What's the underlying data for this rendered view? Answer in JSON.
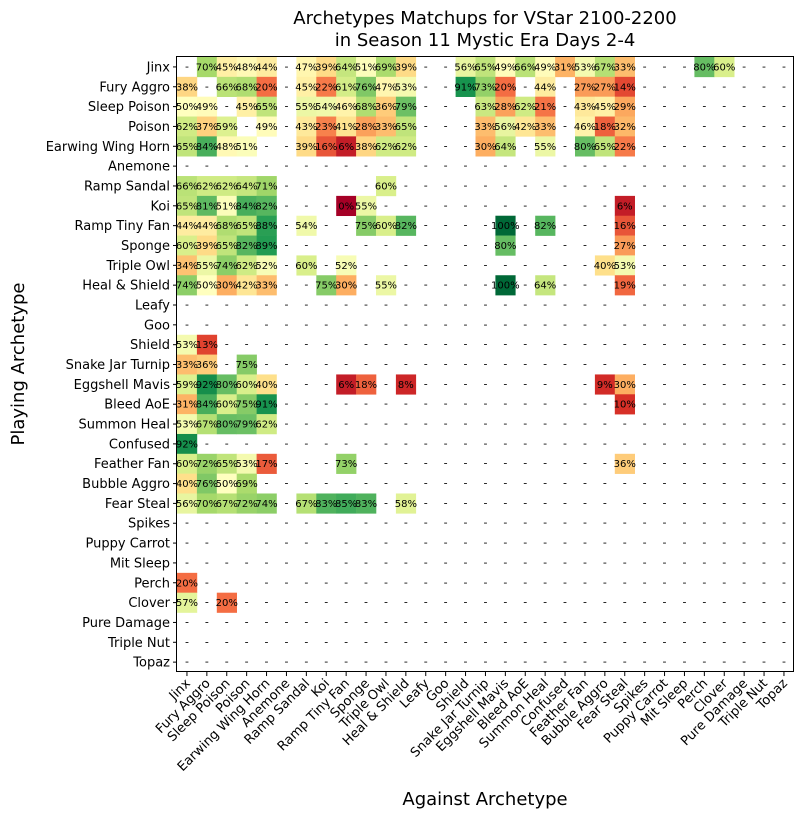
{
  "chart_data": {
    "type": "heatmap",
    "title_line1": "Archetypes Matchups for VStar 2100-2200",
    "title_line2": "in Season 11 Mystic Era Days 2-4",
    "xlabel": "Against Archetype",
    "ylabel": "Playing Archetype",
    "colormap": "RdYlGn",
    "value_range": [
      0,
      100
    ],
    "missing_label": "-",
    "categories": [
      "Jinx",
      "Fury Aggro",
      "Sleep Poison",
      "Poison",
      "Earwing Wing Horn",
      "Anemone",
      "Ramp Sandal",
      "Koi",
      "Ramp Tiny Fan",
      "Sponge",
      "Triple Owl",
      "Heal & Shield",
      "Leafy",
      "Goo",
      "Shield",
      "Snake Jar Turnip",
      "Eggshell Mavis",
      "Bleed AoE",
      "Summon Heal",
      "Confused",
      "Feather Fan",
      "Bubble Aggro",
      "Fear Steal",
      "Spikes",
      "Puppy Carrot",
      "Mit Sleep",
      "Perch",
      "Clover",
      "Pure Damage",
      "Triple Nut",
      "Topaz"
    ],
    "matrix": [
      [
        null,
        70,
        45,
        48,
        44,
        null,
        47,
        39,
        64,
        51,
        69,
        39,
        null,
        null,
        56,
        65,
        49,
        66,
        49,
        31,
        53,
        67,
        33,
        null,
        null,
        null,
        80,
        60,
        null,
        null,
        null
      ],
      [
        38,
        null,
        66,
        68,
        20,
        null,
        45,
        22,
        61,
        76,
        47,
        53,
        null,
        null,
        91,
        73,
        20,
        null,
        44,
        null,
        27,
        27,
        14,
        null,
        null,
        null,
        null,
        null,
        null,
        null,
        null
      ],
      [
        50,
        49,
        null,
        45,
        65,
        null,
        55,
        54,
        46,
        68,
        36,
        79,
        null,
        null,
        null,
        63,
        28,
        62,
        21,
        null,
        43,
        45,
        29,
        null,
        null,
        null,
        null,
        null,
        null,
        null,
        null
      ],
      [
        62,
        37,
        59,
        null,
        49,
        null,
        43,
        23,
        41,
        28,
        33,
        65,
        null,
        null,
        null,
        33,
        56,
        42,
        33,
        null,
        46,
        18,
        32,
        null,
        null,
        null,
        null,
        null,
        null,
        null,
        null
      ],
      [
        65,
        84,
        48,
        51,
        null,
        null,
        39,
        16,
        6,
        38,
        62,
        62,
        null,
        null,
        null,
        30,
        64,
        null,
        55,
        null,
        80,
        65,
        22,
        null,
        null,
        null,
        null,
        null,
        null,
        null,
        null
      ],
      [
        null,
        null,
        null,
        null,
        null,
        null,
        null,
        null,
        null,
        null,
        null,
        null,
        null,
        null,
        null,
        null,
        null,
        null,
        null,
        null,
        null,
        null,
        null,
        null,
        null,
        null,
        null,
        null,
        null,
        null,
        null
      ],
      [
        66,
        62,
        62,
        64,
        71,
        null,
        null,
        null,
        null,
        null,
        60,
        null,
        null,
        null,
        null,
        null,
        null,
        null,
        null,
        null,
        null,
        null,
        null,
        null,
        null,
        null,
        null,
        null,
        null,
        null,
        null
      ],
      [
        65,
        81,
        51,
        84,
        82,
        null,
        null,
        null,
        0,
        55,
        null,
        null,
        null,
        null,
        null,
        null,
        null,
        null,
        null,
        null,
        null,
        null,
        6,
        null,
        null,
        null,
        null,
        null,
        null,
        null,
        null
      ],
      [
        44,
        44,
        68,
        65,
        88,
        null,
        54,
        null,
        null,
        75,
        60,
        82,
        null,
        null,
        null,
        null,
        100,
        null,
        82,
        null,
        null,
        null,
        16,
        null,
        null,
        null,
        null,
        null,
        null,
        null,
        null
      ],
      [
        60,
        39,
        65,
        82,
        89,
        null,
        null,
        null,
        null,
        null,
        null,
        null,
        null,
        null,
        null,
        null,
        80,
        null,
        null,
        null,
        null,
        null,
        27,
        null,
        null,
        null,
        null,
        null,
        null,
        null,
        null
      ],
      [
        34,
        55,
        74,
        62,
        52,
        null,
        60,
        null,
        52,
        null,
        null,
        null,
        null,
        null,
        null,
        null,
        null,
        null,
        null,
        null,
        null,
        40,
        53,
        null,
        null,
        null,
        null,
        null,
        null,
        null,
        null
      ],
      [
        74,
        50,
        30,
        42,
        33,
        null,
        null,
        75,
        30,
        null,
        55,
        null,
        null,
        null,
        null,
        null,
        100,
        null,
        64,
        null,
        null,
        null,
        19,
        null,
        null,
        null,
        null,
        null,
        null,
        null,
        null
      ],
      [
        null,
        null,
        null,
        null,
        null,
        null,
        null,
        null,
        null,
        null,
        null,
        null,
        null,
        null,
        null,
        null,
        null,
        null,
        null,
        null,
        null,
        null,
        null,
        null,
        null,
        null,
        null,
        null,
        null,
        null,
        null
      ],
      [
        null,
        null,
        null,
        null,
        null,
        null,
        null,
        null,
        null,
        null,
        null,
        null,
        null,
        null,
        null,
        null,
        null,
        null,
        null,
        null,
        null,
        null,
        null,
        null,
        null,
        null,
        null,
        null,
        null,
        null,
        null
      ],
      [
        53,
        13,
        null,
        null,
        null,
        null,
        null,
        null,
        null,
        null,
        null,
        null,
        null,
        null,
        null,
        null,
        null,
        null,
        null,
        null,
        null,
        null,
        null,
        null,
        null,
        null,
        null,
        null,
        null,
        null,
        null
      ],
      [
        33,
        36,
        null,
        75,
        null,
        null,
        null,
        null,
        null,
        null,
        null,
        null,
        null,
        null,
        null,
        null,
        null,
        null,
        null,
        null,
        null,
        null,
        null,
        null,
        null,
        null,
        null,
        null,
        null,
        null,
        null
      ],
      [
        59,
        92,
        80,
        60,
        40,
        null,
        null,
        null,
        6,
        18,
        null,
        8,
        null,
        null,
        null,
        null,
        null,
        null,
        null,
        null,
        null,
        9,
        30,
        null,
        null,
        null,
        null,
        null,
        null,
        null,
        null
      ],
      [
        31,
        84,
        60,
        75,
        91,
        null,
        null,
        null,
        null,
        null,
        null,
        null,
        null,
        null,
        null,
        null,
        null,
        null,
        null,
        null,
        null,
        null,
        10,
        null,
        null,
        null,
        null,
        null,
        null,
        null,
        null
      ],
      [
        53,
        67,
        80,
        79,
        62,
        null,
        null,
        null,
        null,
        null,
        null,
        null,
        null,
        null,
        null,
        null,
        null,
        null,
        null,
        null,
        null,
        null,
        null,
        null,
        null,
        null,
        null,
        null,
        null,
        null,
        null
      ],
      [
        92,
        null,
        null,
        null,
        null,
        null,
        null,
        null,
        null,
        null,
        null,
        null,
        null,
        null,
        null,
        null,
        null,
        null,
        null,
        null,
        null,
        null,
        null,
        null,
        null,
        null,
        null,
        null,
        null,
        null,
        null
      ],
      [
        60,
        72,
        65,
        53,
        17,
        null,
        null,
        null,
        73,
        null,
        null,
        null,
        null,
        null,
        null,
        null,
        null,
        null,
        null,
        null,
        null,
        null,
        36,
        null,
        null,
        null,
        null,
        null,
        null,
        null,
        null
      ],
      [
        40,
        76,
        50,
        69,
        null,
        null,
        null,
        null,
        null,
        null,
        null,
        null,
        null,
        null,
        null,
        null,
        null,
        null,
        null,
        null,
        null,
        null,
        null,
        null,
        null,
        null,
        null,
        null,
        null,
        null,
        null
      ],
      [
        56,
        70,
        67,
        72,
        74,
        null,
        67,
        83,
        85,
        83,
        null,
        58,
        null,
        null,
        null,
        null,
        null,
        null,
        null,
        null,
        null,
        null,
        null,
        null,
        null,
        null,
        null,
        null,
        null,
        null,
        null
      ],
      [
        null,
        null,
        null,
        null,
        null,
        null,
        null,
        null,
        null,
        null,
        null,
        null,
        null,
        null,
        null,
        null,
        null,
        null,
        null,
        null,
        null,
        null,
        null,
        null,
        null,
        null,
        null,
        null,
        null,
        null,
        null
      ],
      [
        null,
        null,
        null,
        null,
        null,
        null,
        null,
        null,
        null,
        null,
        null,
        null,
        null,
        null,
        null,
        null,
        null,
        null,
        null,
        null,
        null,
        null,
        null,
        null,
        null,
        null,
        null,
        null,
        null,
        null,
        null
      ],
      [
        null,
        null,
        null,
        null,
        null,
        null,
        null,
        null,
        null,
        null,
        null,
        null,
        null,
        null,
        null,
        null,
        null,
        null,
        null,
        null,
        null,
        null,
        null,
        null,
        null,
        null,
        null,
        null,
        null,
        null,
        null
      ],
      [
        20,
        null,
        null,
        null,
        null,
        null,
        null,
        null,
        null,
        null,
        null,
        null,
        null,
        null,
        null,
        null,
        null,
        null,
        null,
        null,
        null,
        null,
        null,
        null,
        null,
        null,
        null,
        null,
        null,
        null,
        null
      ],
      [
        57,
        null,
        20,
        null,
        null,
        null,
        null,
        null,
        null,
        null,
        null,
        null,
        null,
        null,
        null,
        null,
        null,
        null,
        null,
        null,
        null,
        null,
        null,
        null,
        null,
        null,
        null,
        null,
        null,
        null,
        null
      ],
      [
        null,
        null,
        null,
        null,
        null,
        null,
        null,
        null,
        null,
        null,
        null,
        null,
        null,
        null,
        null,
        null,
        null,
        null,
        null,
        null,
        null,
        null,
        null,
        null,
        null,
        null,
        null,
        null,
        null,
        null,
        null
      ],
      [
        null,
        null,
        null,
        null,
        null,
        null,
        null,
        null,
        null,
        null,
        null,
        null,
        null,
        null,
        null,
        null,
        null,
        null,
        null,
        null,
        null,
        null,
        null,
        null,
        null,
        null,
        null,
        null,
        null,
        null,
        null
      ],
      [
        null,
        null,
        null,
        null,
        null,
        null,
        null,
        null,
        null,
        null,
        null,
        null,
        null,
        null,
        null,
        null,
        null,
        null,
        null,
        null,
        null,
        null,
        null,
        null,
        null,
        null,
        null,
        null,
        null,
        null,
        null
      ]
    ]
  }
}
